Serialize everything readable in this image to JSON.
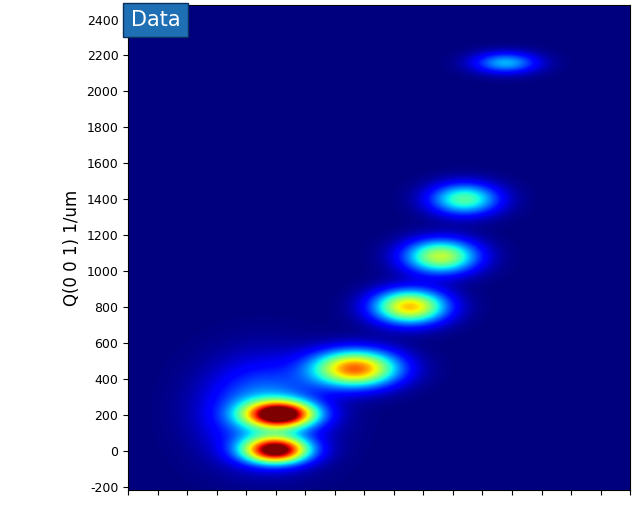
{
  "chart_data": {
    "type": "heatmap",
    "title": "Data",
    "y_label": "Q(0 0 1) 1/um",
    "xlim": [
      0,
      17
    ],
    "xticks": [
      0,
      1,
      2,
      3,
      4,
      5,
      6,
      7,
      8,
      9,
      10,
      11,
      12,
      13,
      14,
      15,
      16,
      17
    ],
    "ylim": [
      -220,
      2480
    ],
    "yticks": [
      -200,
      0,
      200,
      400,
      600,
      800,
      1000,
      1200,
      1400,
      1600,
      1800,
      2000,
      2200,
      2400
    ],
    "tick_labels": "y",
    "color": "jet",
    "color_range": [
      0,
      1
    ],
    "peaks": [
      {
        "x": 5.0,
        "y": 0,
        "x_width": 0.75,
        "y_width": 50,
        "intensity": 1.0
      },
      {
        "x": 5.15,
        "y": 200,
        "x_width": 0.8,
        "y_width": 50,
        "intensity": 1.0
      },
      {
        "x": 4.6,
        "y": 220,
        "x_width": 1.3,
        "y_width": 180,
        "intensity": 0.3
      },
      {
        "x": 7.7,
        "y": 455,
        "x_width": 1.0,
        "y_width": 70,
        "intensity": 0.8
      },
      {
        "x": 9.55,
        "y": 800,
        "x_width": 0.85,
        "y_width": 65,
        "intensity": 0.7
      },
      {
        "x": 10.6,
        "y": 1080,
        "x_width": 0.85,
        "y_width": 65,
        "intensity": 0.58
      },
      {
        "x": 11.4,
        "y": 1400,
        "x_width": 0.8,
        "y_width": 60,
        "intensity": 0.45
      },
      {
        "x": 12.8,
        "y": 2160,
        "x_width": 0.75,
        "y_width": 40,
        "intensity": 0.3
      }
    ]
  }
}
